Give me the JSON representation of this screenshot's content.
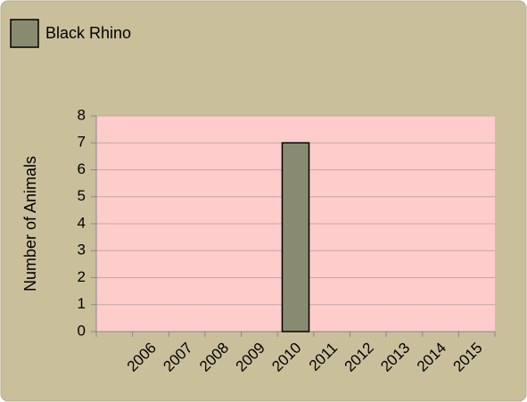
{
  "chart_data": {
    "type": "bar",
    "legend": "Black Rhino",
    "y_label": "Number of Animals",
    "categories": [
      null,
      "2006",
      "2007",
      "2008",
      "2009",
      "2010",
      "2011",
      "2012",
      "2013",
      "2014",
      "2015"
    ],
    "values": [
      null,
      0,
      0,
      0,
      0,
      7,
      0,
      0,
      0,
      0,
      0
    ],
    "color": "#898b71",
    "ylim": [
      0,
      8
    ],
    "yticks": [
      0,
      1,
      2,
      3,
      4,
      5,
      6,
      7,
      8
    ],
    "grid": true
  }
}
